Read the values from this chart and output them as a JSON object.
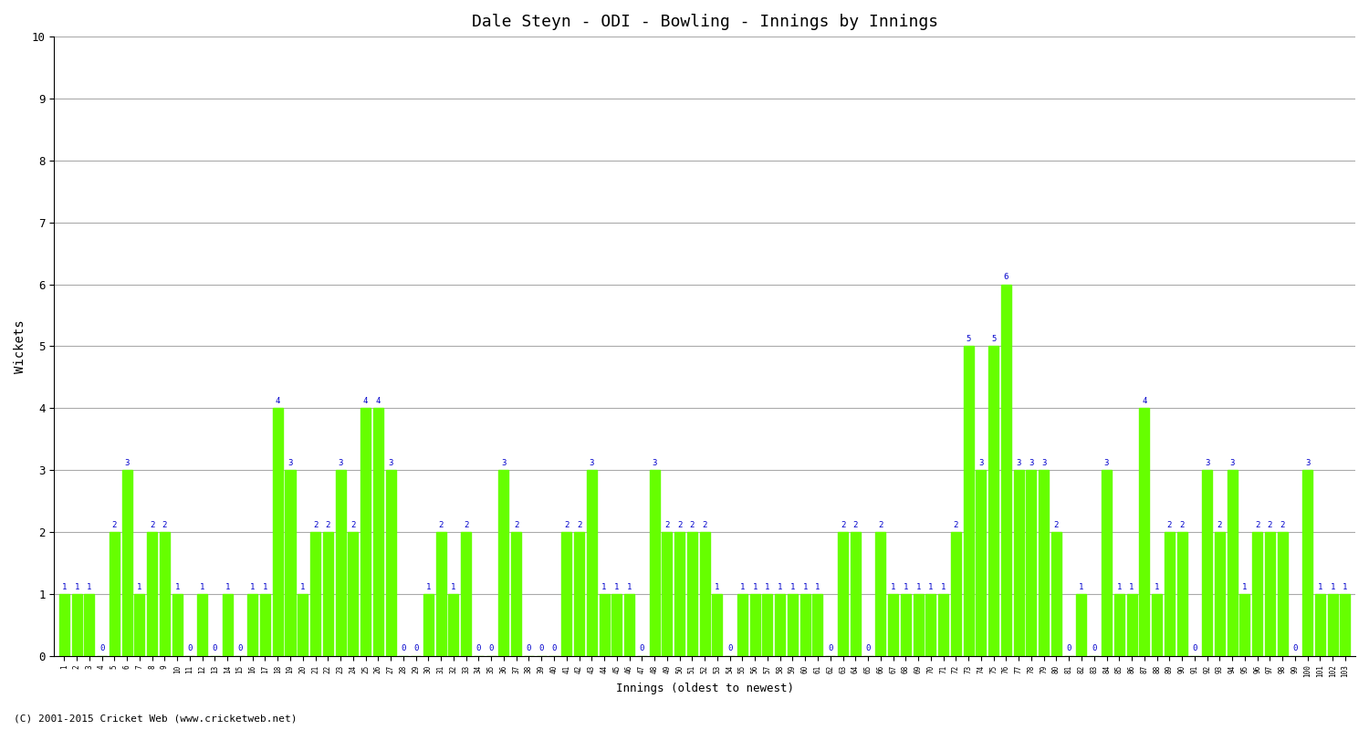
{
  "title": "Dale Steyn - ODI - Bowling - Innings by Innings",
  "xlabel": "Innings (oldest to newest)",
  "ylabel": "Wickets",
  "bar_color": "#66FF00",
  "label_color": "#0000CC",
  "background_color": "#FFFFFF",
  "ylim": [
    0,
    10
  ],
  "yticks": [
    0,
    1,
    2,
    3,
    4,
    5,
    6,
    7,
    8,
    9,
    10
  ],
  "labels": [
    "1",
    "2",
    "3",
    "4",
    "5",
    "6",
    "7",
    "8",
    "9",
    "10",
    "11",
    "12",
    "13",
    "14",
    "15",
    "16",
    "17",
    "18",
    "19",
    "20",
    "21",
    "22",
    "23",
    "24",
    "25",
    "26",
    "27",
    "28",
    "29",
    "30",
    "31",
    "32",
    "33",
    "34",
    "35",
    "36",
    "37",
    "38",
    "39",
    "40",
    "41",
    "42",
    "43",
    "44",
    "45",
    "46",
    "47",
    "48",
    "49",
    "50",
    "51",
    "52",
    "53",
    "54",
    "55",
    "56",
    "57",
    "58",
    "59",
    "60",
    "61",
    "62",
    "63",
    "64",
    "65",
    "66",
    "67",
    "68",
    "69",
    "70",
    "71",
    "72",
    "73",
    "74",
    "75",
    "76",
    "77",
    "78",
    "79",
    "80",
    "81",
    "82",
    "83",
    "84",
    "85",
    "86",
    "87",
    "88",
    "89",
    "90",
    "91",
    "92",
    "93",
    "94",
    "95",
    "96",
    "97",
    "98",
    "99",
    "100",
    "101",
    "102",
    "103"
  ],
  "values": [
    1,
    1,
    1,
    0,
    2,
    3,
    1,
    2,
    2,
    1,
    0,
    1,
    0,
    1,
    0,
    1,
    1,
    4,
    3,
    1,
    2,
    2,
    3,
    2,
    4,
    4,
    3,
    0,
    0,
    1,
    2,
    1,
    2,
    0,
    0,
    3,
    2,
    0,
    0,
    0,
    2,
    2,
    3,
    1,
    1,
    1,
    0,
    3,
    2,
    2,
    2,
    2,
    1,
    0,
    1,
    1,
    1,
    1,
    1,
    1,
    1,
    0,
    2,
    2,
    0,
    2,
    1,
    1,
    1,
    1,
    1,
    2,
    5,
    3,
    5,
    6,
    3,
    3,
    3,
    2,
    0,
    1,
    0,
    3,
    1,
    1,
    4,
    1,
    2,
    2,
    0,
    3,
    2,
    3,
    1,
    2,
    2,
    2,
    0,
    3,
    1,
    1,
    1
  ],
  "footer": "(C) 2001-2015 Cricket Web (www.cricketweb.net)"
}
